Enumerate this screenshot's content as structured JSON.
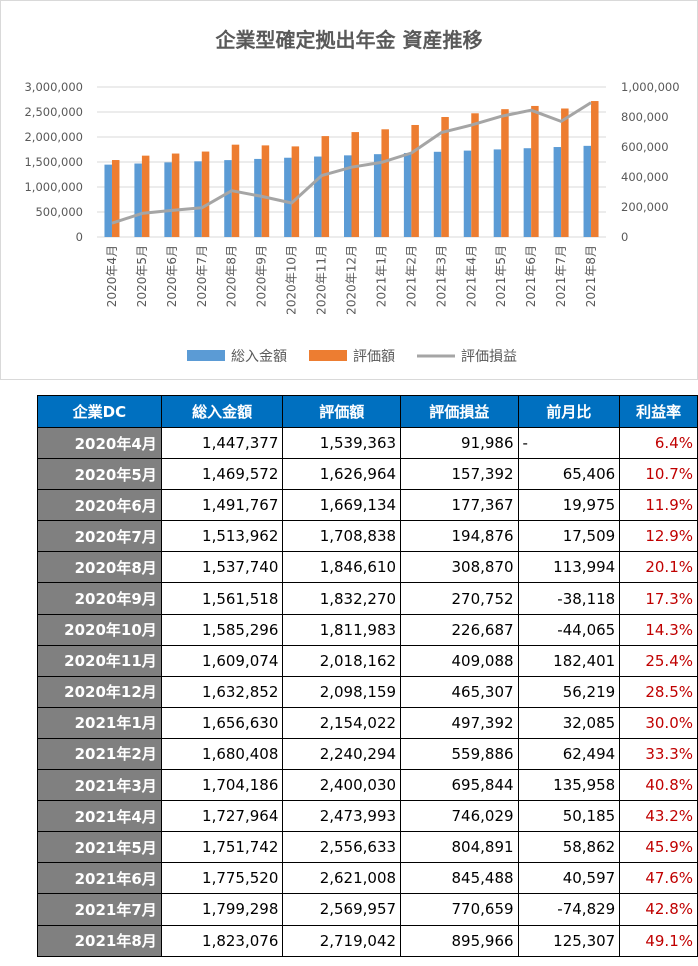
{
  "chart_data": {
    "type": "bar",
    "title": "企業型確定拠出年金 資産推移",
    "categories": [
      "2020年4月",
      "2020年5月",
      "2020年6月",
      "2020年7月",
      "2020年8月",
      "2020年9月",
      "2020年10月",
      "2020年11月",
      "2020年12月",
      "2021年1月",
      "2021年2月",
      "2021年3月",
      "2021年4月",
      "2021年5月",
      "2021年6月",
      "2021年7月",
      "2021年8月"
    ],
    "series": [
      {
        "name": "総入金額",
        "type": "bar",
        "axis": "left",
        "color": "#5b9bd5",
        "values": [
          1447377,
          1469572,
          1491767,
          1513962,
          1537740,
          1561518,
          1585296,
          1609074,
          1632852,
          1656630,
          1680408,
          1704186,
          1727964,
          1751742,
          1775520,
          1799298,
          1823076
        ]
      },
      {
        "name": "評価額",
        "type": "bar",
        "axis": "left",
        "color": "#ed7d31",
        "values": [
          1539363,
          1626964,
          1669134,
          1708838,
          1846610,
          1832270,
          1811983,
          2018162,
          2098159,
          2154022,
          2240294,
          2400030,
          2473993,
          2556633,
          2621008,
          2569957,
          2719042
        ]
      },
      {
        "name": "評価損益",
        "type": "line",
        "axis": "right",
        "color": "#a5a5a5",
        "values": [
          91986,
          157392,
          177367,
          194876,
          308870,
          270752,
          226687,
          409088,
          465307,
          497392,
          559886,
          695844,
          746029,
          804891,
          845488,
          770659,
          895966
        ]
      }
    ],
    "ylim_left": [
      0,
      3000000
    ],
    "ylim_right": [
      0,
      1000000
    ],
    "left_ticks": [
      "0",
      "500,000",
      "1,000,000",
      "1,500,000",
      "2,000,000",
      "2,500,000",
      "3,000,000"
    ],
    "right_ticks": [
      "0",
      "200,000",
      "400,000",
      "600,000",
      "800,000",
      "1,000,000"
    ],
    "grid": true,
    "legend": "bottom"
  },
  "table": {
    "headers": [
      "企業DC",
      "総入金額",
      "評価額",
      "評価損益",
      "前月比",
      "利益率"
    ],
    "rows": [
      [
        "2020年4月",
        "1,447,377",
        "1,539,363",
        "91,986",
        "-",
        "6.4%"
      ],
      [
        "2020年5月",
        "1,469,572",
        "1,626,964",
        "157,392",
        "65,406",
        "10.7%"
      ],
      [
        "2020年6月",
        "1,491,767",
        "1,669,134",
        "177,367",
        "19,975",
        "11.9%"
      ],
      [
        "2020年7月",
        "1,513,962",
        "1,708,838",
        "194,876",
        "17,509",
        "12.9%"
      ],
      [
        "2020年8月",
        "1,537,740",
        "1,846,610",
        "308,870",
        "113,994",
        "20.1%"
      ],
      [
        "2020年9月",
        "1,561,518",
        "1,832,270",
        "270,752",
        "-38,118",
        "17.3%"
      ],
      [
        "2020年10月",
        "1,585,296",
        "1,811,983",
        "226,687",
        "-44,065",
        "14.3%"
      ],
      [
        "2020年11月",
        "1,609,074",
        "2,018,162",
        "409,088",
        "182,401",
        "25.4%"
      ],
      [
        "2020年12月",
        "1,632,852",
        "2,098,159",
        "465,307",
        "56,219",
        "28.5%"
      ],
      [
        "2021年1月",
        "1,656,630",
        "2,154,022",
        "497,392",
        "32,085",
        "30.0%"
      ],
      [
        "2021年2月",
        "1,680,408",
        "2,240,294",
        "559,886",
        "62,494",
        "33.3%"
      ],
      [
        "2021年3月",
        "1,704,186",
        "2,400,030",
        "695,844",
        "135,958",
        "40.8%"
      ],
      [
        "2021年4月",
        "1,727,964",
        "2,473,993",
        "746,029",
        "50,185",
        "43.2%"
      ],
      [
        "2021年5月",
        "1,751,742",
        "2,556,633",
        "804,891",
        "58,862",
        "45.9%"
      ],
      [
        "2021年6月",
        "1,775,520",
        "2,621,008",
        "845,488",
        "40,597",
        "47.6%"
      ],
      [
        "2021年7月",
        "1,799,298",
        "2,569,957",
        "770,659",
        "-74,829",
        "42.8%"
      ],
      [
        "2021年8月",
        "1,823,076",
        "2,719,042",
        "895,966",
        "125,307",
        "49.1%"
      ]
    ]
  }
}
